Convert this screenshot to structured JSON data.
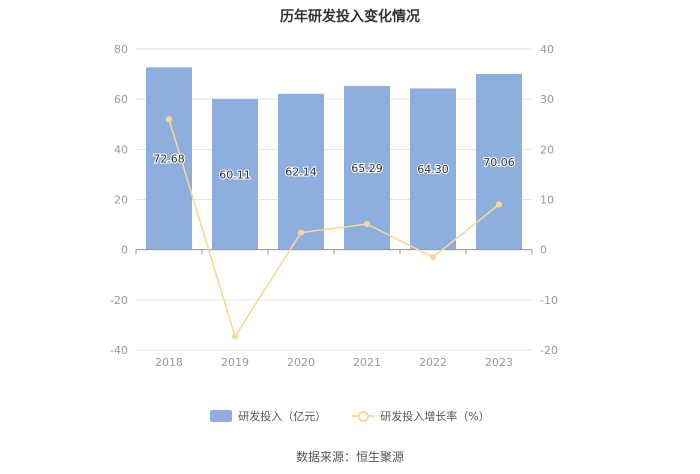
{
  "chart_data": {
    "type": "bar",
    "title": "历年研发投入变化情况",
    "categories": [
      "2018",
      "2019",
      "2020",
      "2021",
      "2022",
      "2023"
    ],
    "series": [
      {
        "name": "研发投入（亿元）",
        "type": "bar",
        "axis": "left",
        "color": "#8eaedd",
        "values": [
          72.68,
          60.11,
          62.14,
          65.29,
          64.3,
          70.06
        ],
        "labels": [
          "72.68",
          "60.11",
          "62.14",
          "65.29",
          "64.30",
          "70.06"
        ]
      },
      {
        "name": "研发投入增长率（%）",
        "type": "line",
        "axis": "right",
        "color": "#f9d79a",
        "values": [
          26.0,
          -17.3,
          3.4,
          5.1,
          -1.5,
          9.0
        ]
      }
    ],
    "y_left": {
      "min": -40,
      "max": 80,
      "ticks": [
        "80",
        "60",
        "40",
        "20",
        "0",
        "-20",
        "-40"
      ]
    },
    "y_right": {
      "min": -20,
      "max": 40,
      "ticks": [
        "40",
        "30",
        "20",
        "10",
        "0",
        "-10",
        "-20"
      ]
    },
    "grid": true,
    "legend_position": "bottom"
  },
  "source": "数据来源：恒生聚源"
}
